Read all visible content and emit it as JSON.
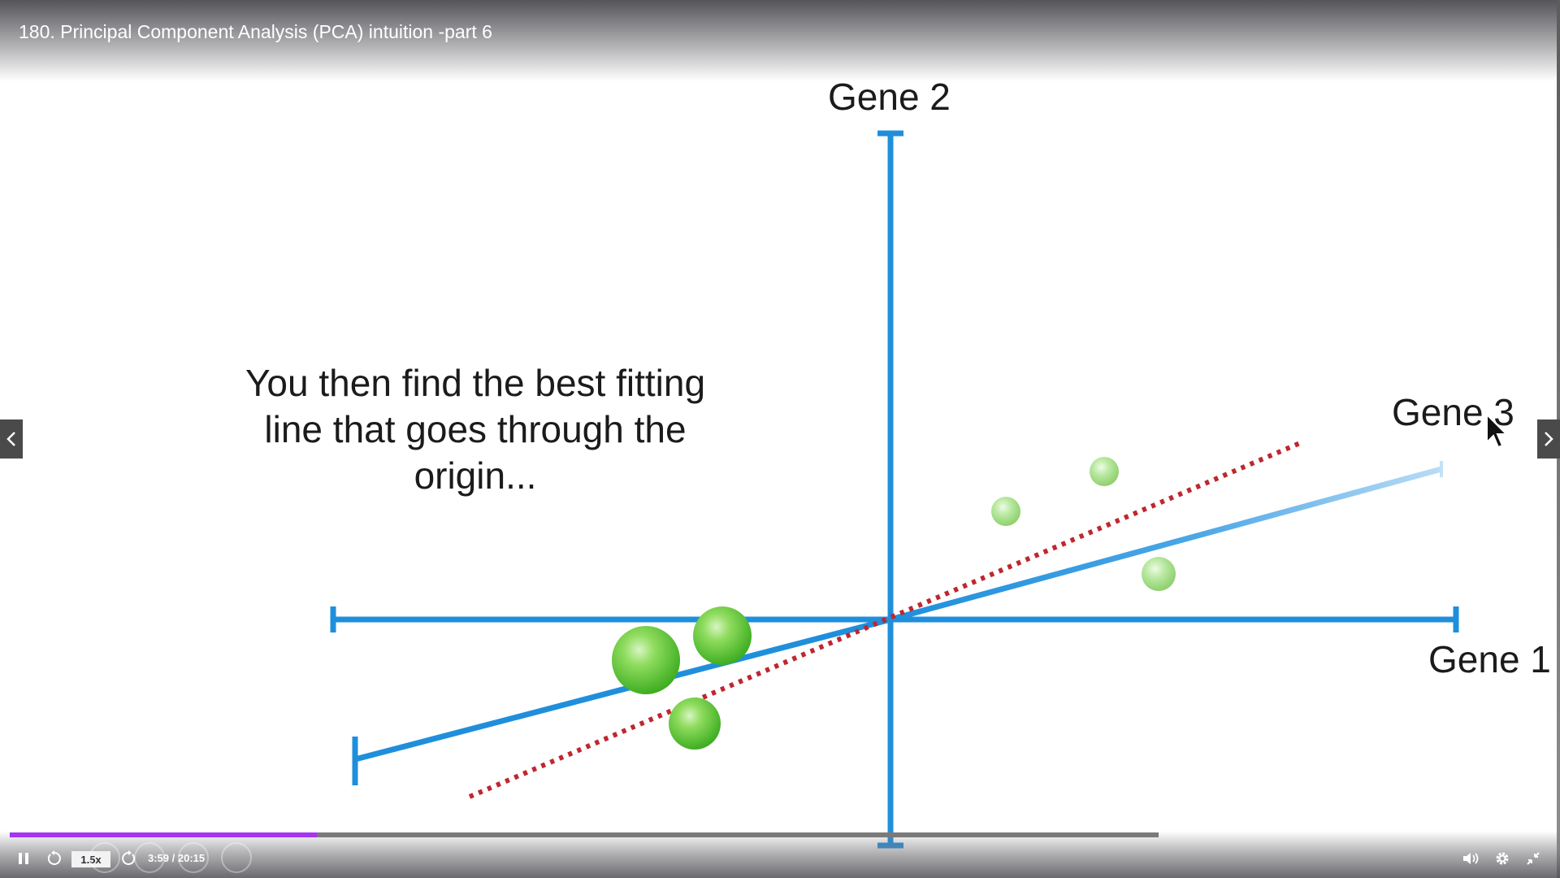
{
  "window": {
    "title": "180. Principal Component Analysis (PCA) intuition -part 6"
  },
  "slide": {
    "caption_lines": [
      "You then find the best fitting",
      "line that goes through the",
      "origin..."
    ],
    "axis_labels": {
      "gene1": "Gene 1",
      "gene2": "Gene 2",
      "gene3": "Gene 3"
    },
    "colors": {
      "axis": "#1f8fdc",
      "fit_line": "#c0262e",
      "points": "#66cc44"
    }
  },
  "navigation": {
    "prev_icon": "chevron-left-icon",
    "next_icon": "chevron-right-icon"
  },
  "controls": {
    "play_icon": "pause-icon",
    "rewind_icon": "rewind-5s-icon",
    "speed": "1.5x",
    "forward_icon": "forward-5s-icon",
    "current_time": "3:59",
    "duration": "20:15",
    "time_display": "3:59 / 20:15",
    "progress_fraction": 0.197,
    "buffered_fraction": 0.74,
    "volume_icon": "volume-icon",
    "settings_icon": "gear-icon",
    "fullscreen_icon": "exit-fullscreen-icon",
    "accent_color": "#a435f0"
  }
}
